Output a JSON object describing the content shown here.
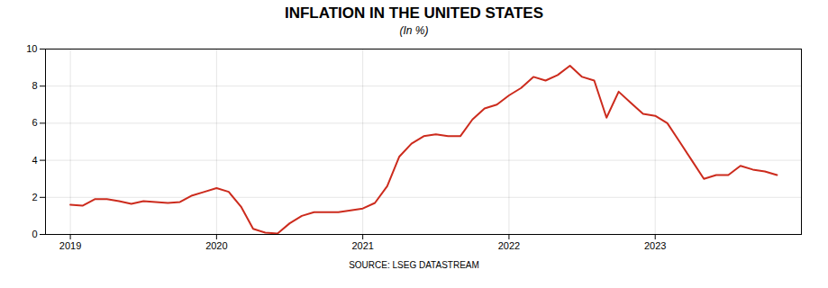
{
  "chart_data": {
    "type": "line",
    "title": "INFLATION IN THE UNITED STATES",
    "subtitle": "(In %)",
    "source": "SOURCE: LSEG DATASTREAM",
    "x": [
      2019.0,
      2019.083,
      2019.167,
      2019.25,
      2019.333,
      2019.417,
      2019.5,
      2019.583,
      2019.667,
      2019.75,
      2019.833,
      2019.917,
      2020.0,
      2020.083,
      2020.167,
      2020.25,
      2020.333,
      2020.417,
      2020.5,
      2020.583,
      2020.667,
      2020.75,
      2020.833,
      2020.917,
      2021.0,
      2021.083,
      2021.167,
      2021.25,
      2021.333,
      2021.417,
      2021.5,
      2021.583,
      2021.667,
      2021.75,
      2021.833,
      2021.917,
      2022.0,
      2022.083,
      2022.167,
      2022.25,
      2022.333,
      2022.417,
      2022.5,
      2022.583,
      2022.667,
      2022.75,
      2022.833,
      2022.917,
      2023.0,
      2023.083,
      2023.167,
      2023.25,
      2023.333,
      2023.417,
      2023.5,
      2023.583,
      2023.667,
      2023.75,
      2023.833
    ],
    "values": [
      1.6,
      1.55,
      1.9,
      1.9,
      1.8,
      1.65,
      1.8,
      1.75,
      1.7,
      1.75,
      2.1,
      2.3,
      2.5,
      2.3,
      1.5,
      0.3,
      0.1,
      0.05,
      0.6,
      1.0,
      1.2,
      1.2,
      1.2,
      1.3,
      1.4,
      1.7,
      2.6,
      4.2,
      4.9,
      5.3,
      5.4,
      5.3,
      5.3,
      6.2,
      6.8,
      7.0,
      7.5,
      7.9,
      8.5,
      8.3,
      8.6,
      9.1,
      8.5,
      8.3,
      6.3,
      7.7,
      7.1,
      6.5,
      6.4,
      6.0,
      5.0,
      4.0,
      3.0,
      3.2,
      3.2,
      3.7,
      3.5,
      3.4,
      3.2
    ],
    "color": "#cc2b1d",
    "xlim": [
      2018.83,
      2024.0
    ],
    "xticks": [
      2019,
      2020,
      2021,
      2022,
      2023
    ],
    "ylim": [
      0,
      10
    ],
    "yticks": [
      0,
      2,
      4,
      6,
      8,
      10
    ],
    "grid": true
  }
}
